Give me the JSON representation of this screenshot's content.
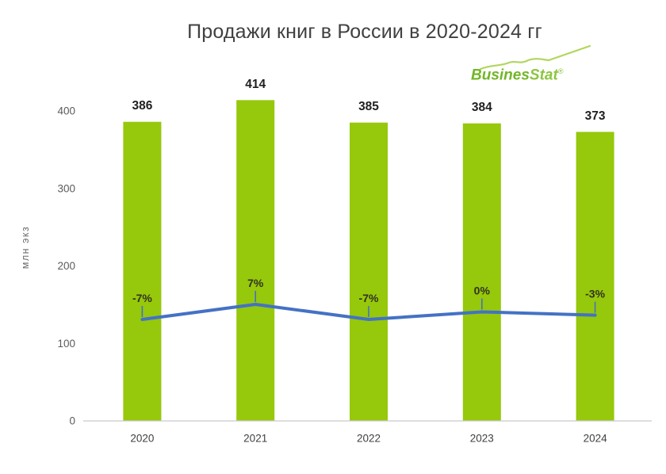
{
  "title": "Продажи книг в России в 2020-2024 гг",
  "logo": {
    "text_bold": "Busines",
    "text_italic": "Stat",
    "registered": "®"
  },
  "y_axis": {
    "label": "млн экз",
    "ticks": [
      0,
      100,
      200,
      300,
      400
    ]
  },
  "chart_data": {
    "type": "bar",
    "title": "Продажи книг в России в 2020-2024 гг",
    "categories": [
      "2020",
      "2021",
      "2022",
      "2023",
      "2024"
    ],
    "series": [
      {
        "name": "bars",
        "type": "bar",
        "values": [
          386,
          414,
          385,
          384,
          373
        ],
        "data_labels": [
          "386",
          "414",
          "385",
          "384",
          "373"
        ],
        "color": "#96C80C"
      },
      {
        "name": "line",
        "type": "line",
        "values": [
          -7,
          7,
          -7,
          0,
          -3
        ],
        "data_labels": [
          "-7%",
          "7%",
          "-7%",
          "0%",
          "-3%"
        ],
        "color": "#4472C4"
      }
    ],
    "ylabel": "млн экз",
    "ylim": [
      0,
      440
    ],
    "grid": false,
    "legend": "none"
  },
  "colors": {
    "bar": "#96C80C",
    "line": "#4472C4",
    "axis_line": "#C9C9C9",
    "tick_text": "#5B5B5B",
    "category_text": "#404040",
    "title_text": "#404040",
    "value_label": "#1F1F1F",
    "pct_label": "#32321E",
    "logo_green": "#72B626",
    "logo_light_green": "#A9D14D"
  }
}
